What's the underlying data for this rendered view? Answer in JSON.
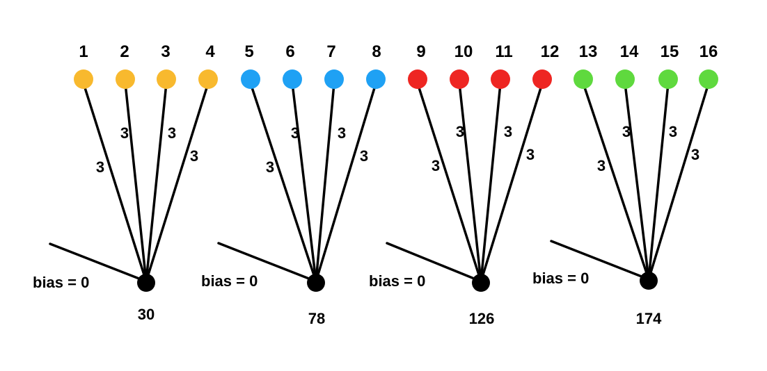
{
  "groups": [
    {
      "color": "#F8B92E",
      "inputs": [
        "1",
        "2",
        "3",
        "4"
      ],
      "weights": [
        "3",
        "3",
        "3",
        "3"
      ],
      "bias_label": "bias = 0",
      "output_label": "30"
    },
    {
      "color": "#1FA1F4",
      "inputs": [
        "5",
        "6",
        "7",
        "8"
      ],
      "weights": [
        "3",
        "3",
        "3",
        "3"
      ],
      "bias_label": "bias = 0",
      "output_label": "78"
    },
    {
      "color": "#EE2622",
      "inputs": [
        "9",
        "10",
        "11",
        "12"
      ],
      "weights": [
        "3",
        "3",
        "3",
        "3"
      ],
      "bias_label": "bias = 0",
      "output_label": "126"
    },
    {
      "color": "#5FD93E",
      "inputs": [
        "13",
        "14",
        "15",
        "16"
      ],
      "weights": [
        "3",
        "3",
        "3",
        "3"
      ],
      "bias_label": "bias = 0",
      "output_label": "174"
    }
  ],
  "output_node_color": "#000000"
}
